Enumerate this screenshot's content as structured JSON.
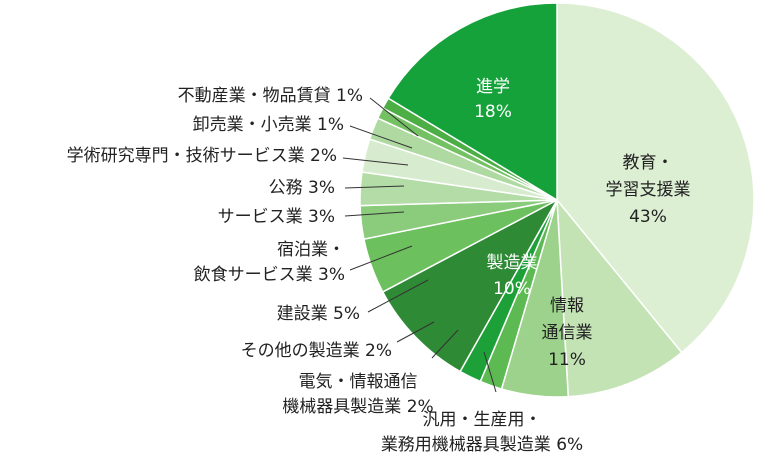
{
  "chart_data": {
    "type": "pie",
    "start_angle_deg": 0,
    "direction": "clockwise",
    "slices": [
      {
        "key": "education",
        "label_lines": [
          "教育・",
          "学習支援業"
        ],
        "pct_text": "43%",
        "value": 43,
        "color": "#dcefd3",
        "label_color": "#222222"
      },
      {
        "key": "it",
        "label_lines": [
          "情報",
          "通信業"
        ],
        "pct_text": "11%",
        "value": 11,
        "color": "#c3e3b5",
        "label_color": "#222222"
      },
      {
        "key": "general_machinery",
        "label_lines": [
          "汎用・生産用・",
          "業務用機械器具製造業 6%"
        ],
        "value": 6,
        "color": "#9dd28c",
        "label_color": "#222222"
      },
      {
        "key": "electrical_machinery",
        "label_lines": [
          "電気・情報通信",
          "機械器具製造業 2%"
        ],
        "value": 2,
        "color": "#5dba53",
        "label_color": "#222222"
      },
      {
        "key": "other_manufacturing",
        "label_lines": [
          "その他の製造業 2%"
        ],
        "value": 2,
        "color": "#1ea039",
        "label_color": "#222222"
      },
      {
        "key": "manufacturing",
        "label_lines": [
          "製造業",
          "10%"
        ],
        "pct_text": "",
        "value": 10,
        "color": "#2f8a36",
        "label_color": "#ffffff"
      },
      {
        "key": "construction",
        "label_lines": [
          "建設業 5%"
        ],
        "value": 5,
        "color": "#6cc05d",
        "label_color": "#222222"
      },
      {
        "key": "hospitality",
        "label_lines": [
          "宿泊業・",
          "飲食サービス業 3%"
        ],
        "value": 3,
        "color": "#8bcb7c",
        "label_color": "#222222"
      },
      {
        "key": "services",
        "label_lines": [
          "サービス業 3%"
        ],
        "value": 3,
        "color": "#b3dca6",
        "label_color": "#222222"
      },
      {
        "key": "public",
        "label_lines": [
          "公務 3%"
        ],
        "value": 3,
        "color": "#d7eccf",
        "label_color": "#222222"
      },
      {
        "key": "academic",
        "label_lines": [
          "学術研究専門・技術サービス業 2%"
        ],
        "value": 2,
        "color": "#aed9a1",
        "label_color": "#222222"
      },
      {
        "key": "wholesale",
        "label_lines": [
          "卸売業・小売業 1%"
        ],
        "value": 1,
        "color": "#74c163",
        "label_color": "#222222"
      },
      {
        "key": "real_estate",
        "label_lines": [
          "不動産業・物品賃貸 1%"
        ],
        "value": 1,
        "color": "#4cae45",
        "label_color": "#222222"
      },
      {
        "key": "further_study",
        "label_lines": [
          "進学",
          "18%"
        ],
        "value": 18,
        "color": "#15a23a",
        "label_color": "#ffffff"
      }
    ]
  }
}
